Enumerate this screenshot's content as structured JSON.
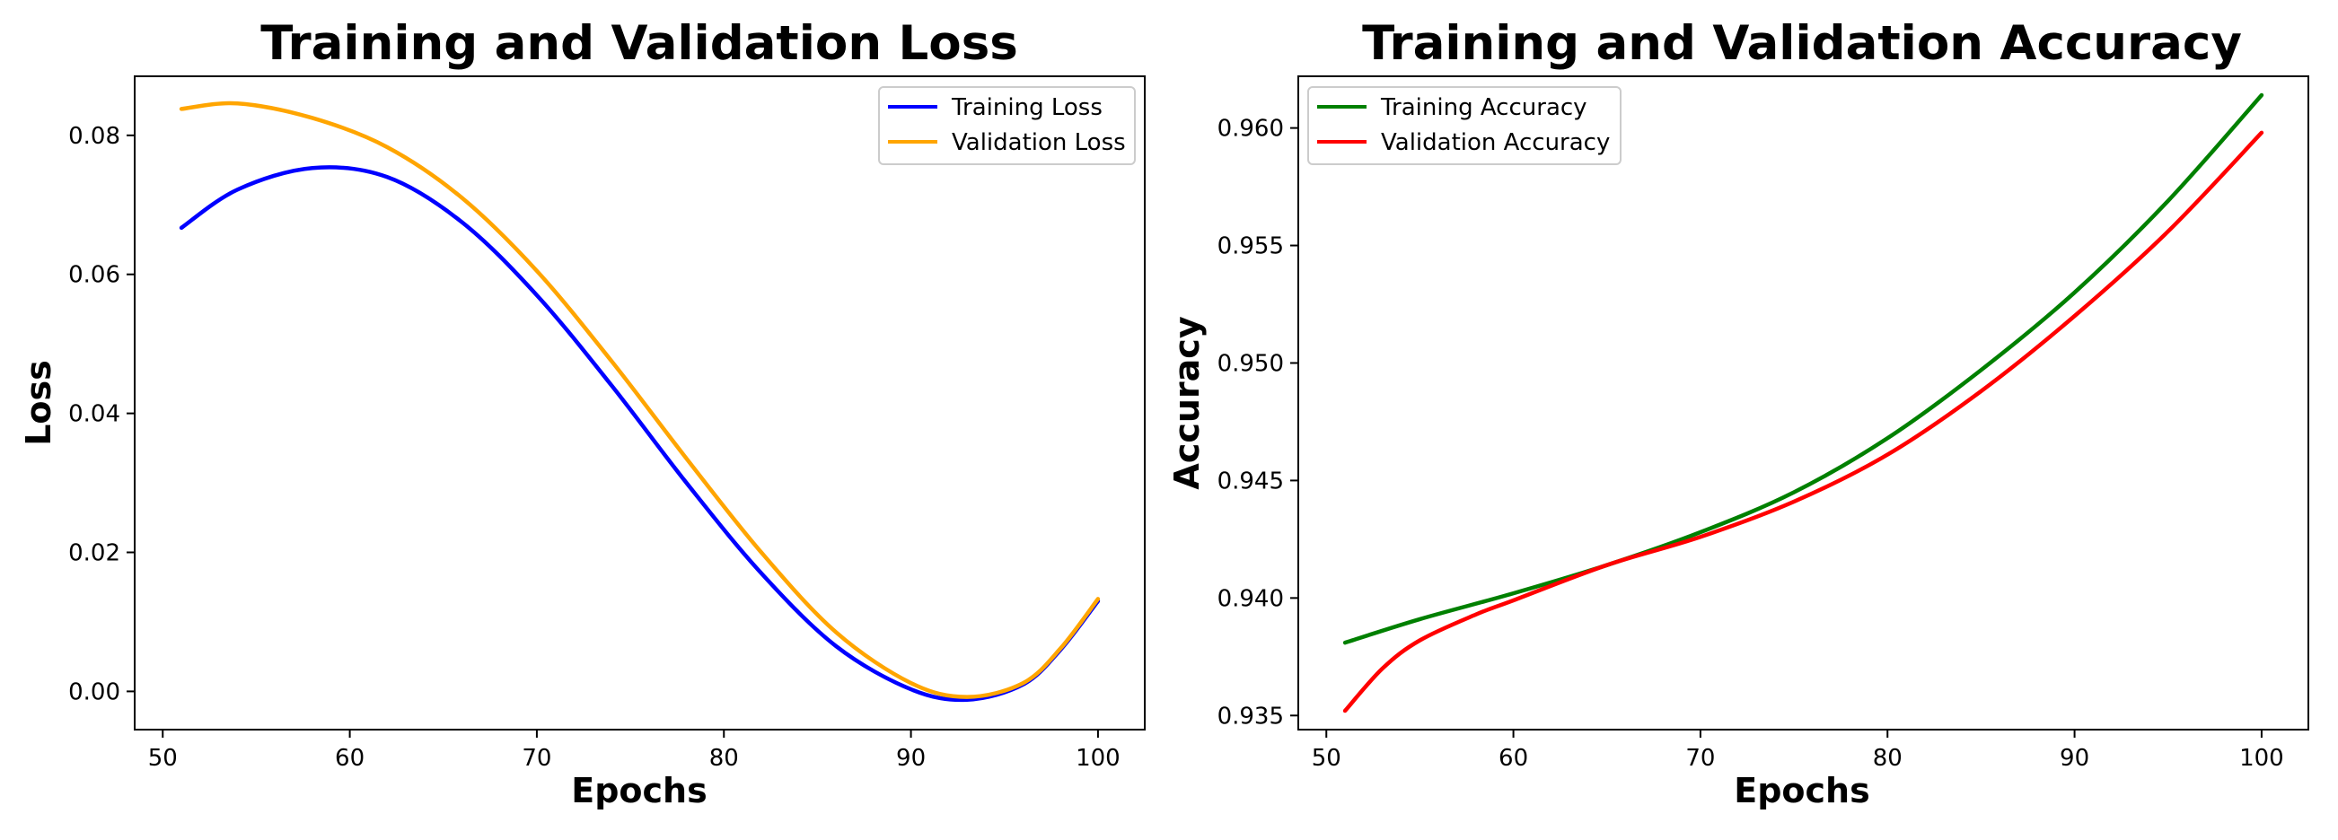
{
  "chart_data": [
    {
      "type": "line",
      "title": "Training and Validation Loss",
      "xlabel": "Epochs",
      "ylabel": "Loss",
      "xlim": [
        48.5,
        102.5
      ],
      "ylim": [
        -0.0055,
        0.0885
      ],
      "xticks": [
        50,
        60,
        70,
        80,
        90,
        100
      ],
      "yticks": [
        0.0,
        0.02,
        0.04,
        0.06,
        0.08
      ],
      "xtick_labels": [
        "50",
        "60",
        "70",
        "80",
        "90",
        "100"
      ],
      "ytick_labels": [
        "0.00",
        "0.02",
        "0.04",
        "0.06",
        "0.08"
      ],
      "legend_position": "upper right",
      "grid": false,
      "series": [
        {
          "name": "Training Loss",
          "color": "#0000ff",
          "x": [
            51,
            54,
            58,
            62,
            66,
            70,
            74,
            78,
            82,
            86,
            90,
            93,
            96,
            98,
            100
          ],
          "y": [
            0.0667,
            0.0722,
            0.0753,
            0.074,
            0.0675,
            0.057,
            0.044,
            0.03,
            0.017,
            0.0065,
            0.0003,
            -0.0012,
            0.001,
            0.006,
            0.013
          ]
        },
        {
          "name": "Validation Loss",
          "color": "#ffa500",
          "x": [
            51,
            54,
            58,
            62,
            66,
            70,
            74,
            78,
            82,
            86,
            90,
            93,
            96,
            98,
            100
          ],
          "y": [
            0.0838,
            0.0846,
            0.0825,
            0.0783,
            0.071,
            0.0605,
            0.0475,
            0.0335,
            0.02,
            0.0085,
            0.0012,
            -0.0008,
            0.0012,
            0.0062,
            0.0133
          ]
        }
      ]
    },
    {
      "type": "line",
      "title": "Training and Validation Accuracy",
      "xlabel": "Epochs",
      "ylabel": "Accuracy",
      "xlim": [
        48.5,
        102.5
      ],
      "ylim": [
        0.9344,
        0.9622
      ],
      "xticks": [
        50,
        60,
        70,
        80,
        90,
        100
      ],
      "yticks": [
        0.935,
        0.94,
        0.945,
        0.95,
        0.955,
        0.96
      ],
      "xtick_labels": [
        "50",
        "60",
        "70",
        "80",
        "90",
        "100"
      ],
      "ytick_labels": [
        "0.935",
        "0.940",
        "0.945",
        "0.950",
        "0.955",
        "0.960"
      ],
      "legend_position": "upper left",
      "grid": false,
      "series": [
        {
          "name": "Training Accuracy",
          "color": "#008000",
          "x": [
            51,
            55,
            60,
            65,
            70,
            75,
            80,
            85,
            90,
            95,
            100
          ],
          "y": [
            0.9381,
            0.9391,
            0.9402,
            0.9414,
            0.9428,
            0.9445,
            0.9468,
            0.9497,
            0.953,
            0.9569,
            0.9614
          ]
        },
        {
          "name": "Validation Accuracy",
          "color": "#ff0000",
          "x": [
            51,
            53,
            55,
            58,
            60,
            65,
            70,
            75,
            80,
            85,
            90,
            95,
            100
          ],
          "y": [
            0.9352,
            0.937,
            0.9382,
            0.9393,
            0.9399,
            0.9414,
            0.9426,
            0.9441,
            0.9461,
            0.9488,
            0.952,
            0.9556,
            0.9598
          ]
        }
      ]
    }
  ]
}
